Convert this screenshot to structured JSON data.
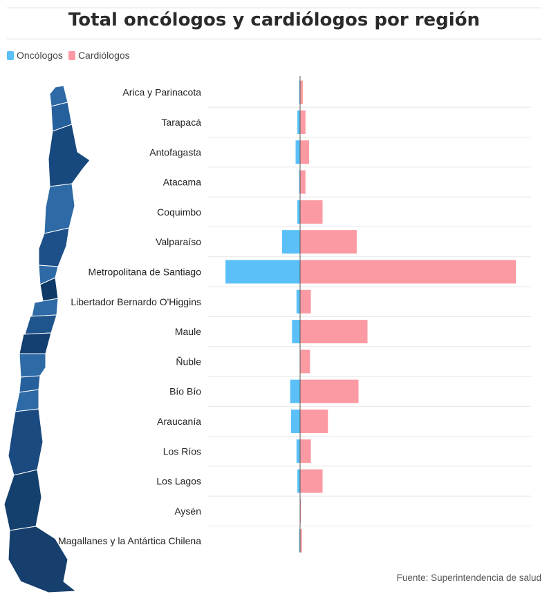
{
  "title": "Total oncólogos y cardiólogos por región",
  "source": "Fuente: Superintendencia de salud",
  "colors": {
    "oncologos": "#5bc0f8",
    "cardiologos": "#fc9aa3",
    "map_light": "#2e6aa6",
    "map_dark": "#14406e"
  },
  "chart_data": {
    "type": "bar",
    "orientation": "horizontal-diverging",
    "title": "Total oncólogos y cardiólogos por región",
    "categories": [
      "Arica y Parinacota",
      "Tarapacá",
      "Antofagasta",
      "Atacama",
      "Coquimbo",
      "Valparaíso",
      "Metropolitana de Santiago",
      "Libertador Bernardo O'Higgins",
      "Maule",
      "Ñuble",
      "Bío Bío",
      "Araucanía",
      "Los Ríos",
      "Los Lagos",
      "Aysén",
      "Magallanes y la Antártica Chilena"
    ],
    "series": [
      {
        "name": "Oncólogos",
        "direction": "left",
        "values": [
          1,
          3,
          5,
          1,
          3,
          20,
          83,
          4,
          9,
          0,
          11,
          10,
          4,
          3,
          0,
          1
        ]
      },
      {
        "name": "Cardiólogos",
        "direction": "right",
        "values": [
          3,
          6,
          10,
          6,
          25,
          63,
          240,
          12,
          75,
          11,
          65,
          31,
          12,
          25,
          1,
          2
        ]
      }
    ],
    "legend": [
      "Oncólogos",
      "Cardiólogos"
    ],
    "legend_position": "top-left",
    "grid": "horizontal separators between categories",
    "axis_labels_visible": false
  }
}
